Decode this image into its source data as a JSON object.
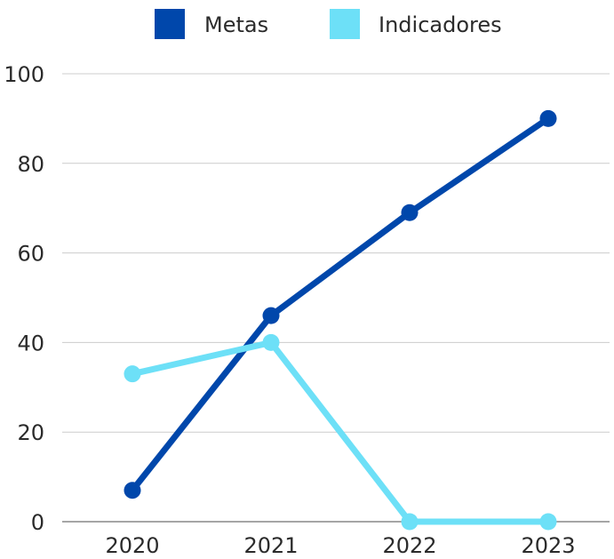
{
  "chart_data": {
    "type": "line",
    "title": "",
    "xlabel": "",
    "ylabel": "",
    "categories": [
      "2020",
      "2021",
      "2022",
      "2023"
    ],
    "ylim": [
      0,
      100
    ],
    "y_ticks": [
      0,
      20,
      40,
      60,
      80,
      100
    ],
    "grid": true,
    "legend_position": "top-center",
    "series": [
      {
        "name": "Metas",
        "color": "#0047ab",
        "values": [
          7,
          46,
          69,
          90
        ]
      },
      {
        "name": "Indicadores",
        "color": "#6de0f7",
        "values": [
          33,
          40,
          0,
          0
        ]
      }
    ]
  }
}
